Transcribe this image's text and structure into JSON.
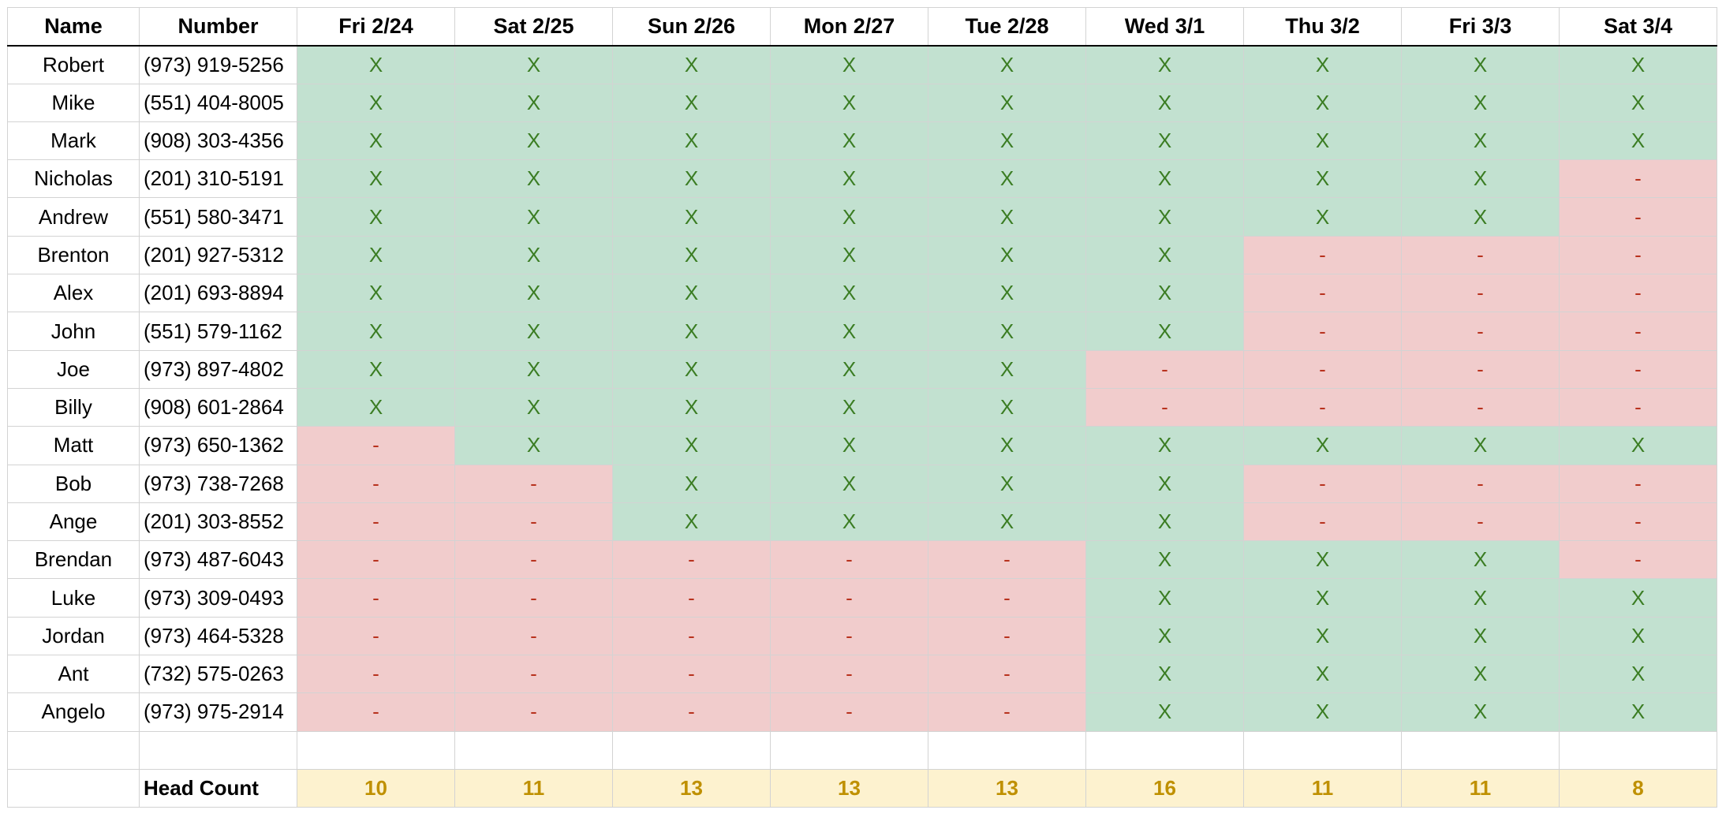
{
  "headers": [
    "Name",
    "Number",
    "Fri 2/24",
    "Sat 2/25",
    "Sun 2/26",
    "Mon 2/27",
    "Tue 2/28",
    "Wed 3/1",
    "Thu 3/2",
    "Fri 3/3",
    "Sat 3/4"
  ],
  "rows": [
    {
      "name": "Robert",
      "number": "(973) 919-5256",
      "days": [
        "X",
        "X",
        "X",
        "X",
        "X",
        "X",
        "X",
        "X",
        "X"
      ]
    },
    {
      "name": "Mike",
      "number": "(551) 404-8005",
      "days": [
        "X",
        "X",
        "X",
        "X",
        "X",
        "X",
        "X",
        "X",
        "X"
      ]
    },
    {
      "name": "Mark",
      "number": "(908) 303-4356",
      "days": [
        "X",
        "X",
        "X",
        "X",
        "X",
        "X",
        "X",
        "X",
        "X"
      ]
    },
    {
      "name": "Nicholas",
      "number": "(201) 310-5191",
      "days": [
        "X",
        "X",
        "X",
        "X",
        "X",
        "X",
        "X",
        "X",
        "-"
      ]
    },
    {
      "name": "Andrew",
      "number": "(551) 580-3471",
      "days": [
        "X",
        "X",
        "X",
        "X",
        "X",
        "X",
        "X",
        "X",
        "-"
      ]
    },
    {
      "name": "Brenton",
      "number": "(201) 927-5312",
      "days": [
        "X",
        "X",
        "X",
        "X",
        "X",
        "X",
        "-",
        "-",
        "-"
      ]
    },
    {
      "name": "Alex",
      "number": "(201) 693-8894",
      "days": [
        "X",
        "X",
        "X",
        "X",
        "X",
        "X",
        "-",
        "-",
        "-"
      ]
    },
    {
      "name": "John",
      "number": "(551) 579-1162",
      "days": [
        "X",
        "X",
        "X",
        "X",
        "X",
        "X",
        "-",
        "-",
        "-"
      ]
    },
    {
      "name": "Joe",
      "number": "(973) 897-4802",
      "days": [
        "X",
        "X",
        "X",
        "X",
        "X",
        "-",
        "-",
        "-",
        "-"
      ]
    },
    {
      "name": "Billy",
      "number": "(908) 601-2864",
      "days": [
        "X",
        "X",
        "X",
        "X",
        "X",
        "-",
        "-",
        "-",
        "-"
      ]
    },
    {
      "name": "Matt",
      "number": "(973) 650-1362",
      "days": [
        "-",
        "X",
        "X",
        "X",
        "X",
        "X",
        "X",
        "X",
        "X"
      ]
    },
    {
      "name": "Bob",
      "number": "(973) 738-7268",
      "days": [
        "-",
        "-",
        "X",
        "X",
        "X",
        "X",
        "-",
        "-",
        "-"
      ]
    },
    {
      "name": "Ange",
      "number": "(201) 303-8552",
      "days": [
        "-",
        "-",
        "X",
        "X",
        "X",
        "X",
        "-",
        "-",
        "-"
      ]
    },
    {
      "name": "Brendan",
      "number": "(973) 487-6043",
      "days": [
        "-",
        "-",
        "-",
        "-",
        "-",
        "X",
        "X",
        "X",
        "-"
      ]
    },
    {
      "name": "Luke",
      "number": "(973) 309-0493",
      "days": [
        "-",
        "-",
        "-",
        "-",
        "-",
        "X",
        "X",
        "X",
        "X"
      ]
    },
    {
      "name": "Jordan",
      "number": "(973) 464-5328",
      "days": [
        "-",
        "-",
        "-",
        "-",
        "-",
        "X",
        "X",
        "X",
        "X"
      ]
    },
    {
      "name": "Ant",
      "number": "(732) 575-0263",
      "days": [
        "-",
        "-",
        "-",
        "-",
        "-",
        "X",
        "X",
        "X",
        "X"
      ]
    },
    {
      "name": "Angelo",
      "number": "(973) 975-2914",
      "days": [
        "-",
        "-",
        "-",
        "-",
        "-",
        "X",
        "X",
        "X",
        "X"
      ]
    }
  ],
  "head_count": {
    "label": "Head Count",
    "values": [
      "10",
      "11",
      "13",
      "13",
      "13",
      "16",
      "11",
      "11",
      "8"
    ]
  },
  "colors": {
    "yes_bg": "#c2e1d0",
    "yes_text": "#3b7d23",
    "no_bg": "#f1cccc",
    "no_text": "#b8321e",
    "count_bg": "#fdf2cf",
    "count_text": "#bf9000",
    "gridline": "#d3d3d3"
  }
}
